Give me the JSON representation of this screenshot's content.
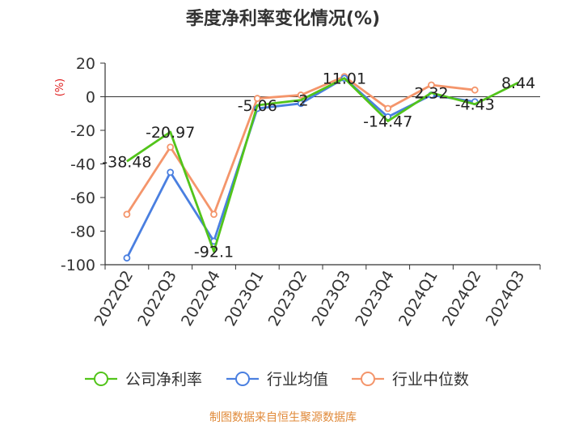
{
  "chart_data": {
    "type": "line",
    "title": "季度净利率变化情况(%)",
    "ylabel": "(%)",
    "ylim": [
      -100,
      20
    ],
    "yticks": [
      20,
      0,
      -20,
      -40,
      -60,
      -80,
      -100
    ],
    "categories": [
      "2022Q2",
      "2022Q3",
      "2022Q4",
      "2023Q1",
      "2023Q2",
      "2023Q3",
      "2023Q4",
      "2024Q1",
      "2024Q2",
      "2024Q3"
    ],
    "series": [
      {
        "name": "公司净利率",
        "color": "#52c41a",
        "values": [
          -38.48,
          -20.97,
          -92.1,
          -5.06,
          -2,
          11.01,
          -14.47,
          2.32,
          -4.43,
          8.44
        ],
        "labels": [
          "-38.48",
          "-20.97",
          "-92.1",
          "-5.06",
          "-2",
          "11.01",
          "-14.47",
          "2.32",
          "-4.43",
          "8.44"
        ]
      },
      {
        "name": "行业均值",
        "color": "#4a7fe0",
        "values": [
          -96,
          -45,
          -86,
          -7,
          -4,
          11,
          -12,
          1,
          -3,
          null
        ]
      },
      {
        "name": "行业中位数",
        "color": "#f4956b",
        "values": [
          -70,
          -30,
          -70,
          -1,
          1,
          12,
          -7,
          7,
          4,
          null
        ]
      }
    ],
    "grid": false,
    "legend_position": "bottom"
  },
  "footer": {
    "source": "制图数据来自恒生聚源数据库",
    "source_color": "#e08a3a"
  },
  "colors": {
    "ylabel": "#e02020"
  }
}
